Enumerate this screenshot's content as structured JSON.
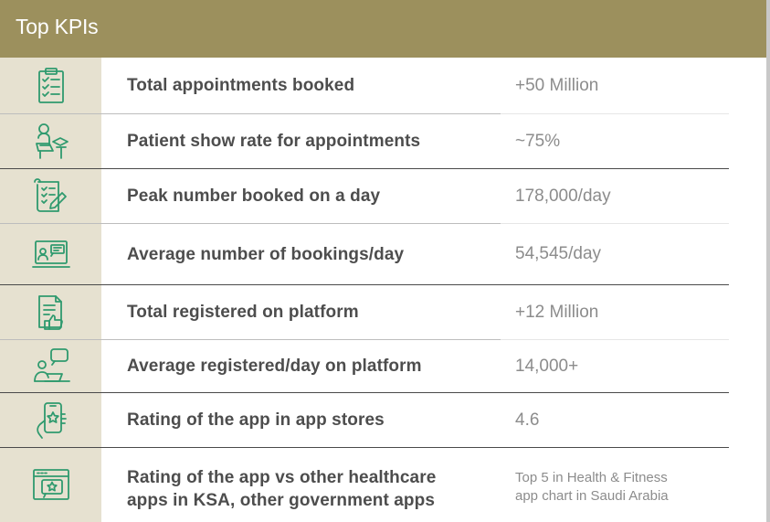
{
  "header": {
    "title": "Top KPIs"
  },
  "rows": [
    {
      "icon": "checklist-clipboard-icon",
      "label": "Total appointments booked",
      "value": "+50 Million"
    },
    {
      "icon": "patient-desk-icon",
      "label": "Patient show rate for appointments",
      "value": "~75%"
    },
    {
      "icon": "document-pen-icon",
      "label": "Peak number booked on a day",
      "value": "178,000/day"
    },
    {
      "icon": "monitor-user-icon",
      "label": "Average number of bookings/day",
      "value": "54,545/day"
    },
    {
      "icon": "document-thumbs-up-icon",
      "label": "Total registered on platform",
      "value": "+12 Million"
    },
    {
      "icon": "user-laptop-chat-icon",
      "label": "Average registered/day on platform",
      "value": "14,000+"
    },
    {
      "icon": "phone-hand-star-icon",
      "label": "Rating of the app in app stores",
      "value": "4.6"
    },
    {
      "icon": "browser-star-icon",
      "label_line1": "Rating of the app vs other healthcare",
      "label_line2": "apps in KSA, other government apps",
      "value_line1": "Top 5 in Health & Fitness",
      "value_line2": "app chart in Saudi Arabia"
    }
  ],
  "colors": {
    "header": "#9c905d",
    "icon_cell": "#e6e1d0",
    "icon": "#2f9a6e",
    "label": "#4d4d4d",
    "value": "#8c8c8c"
  }
}
